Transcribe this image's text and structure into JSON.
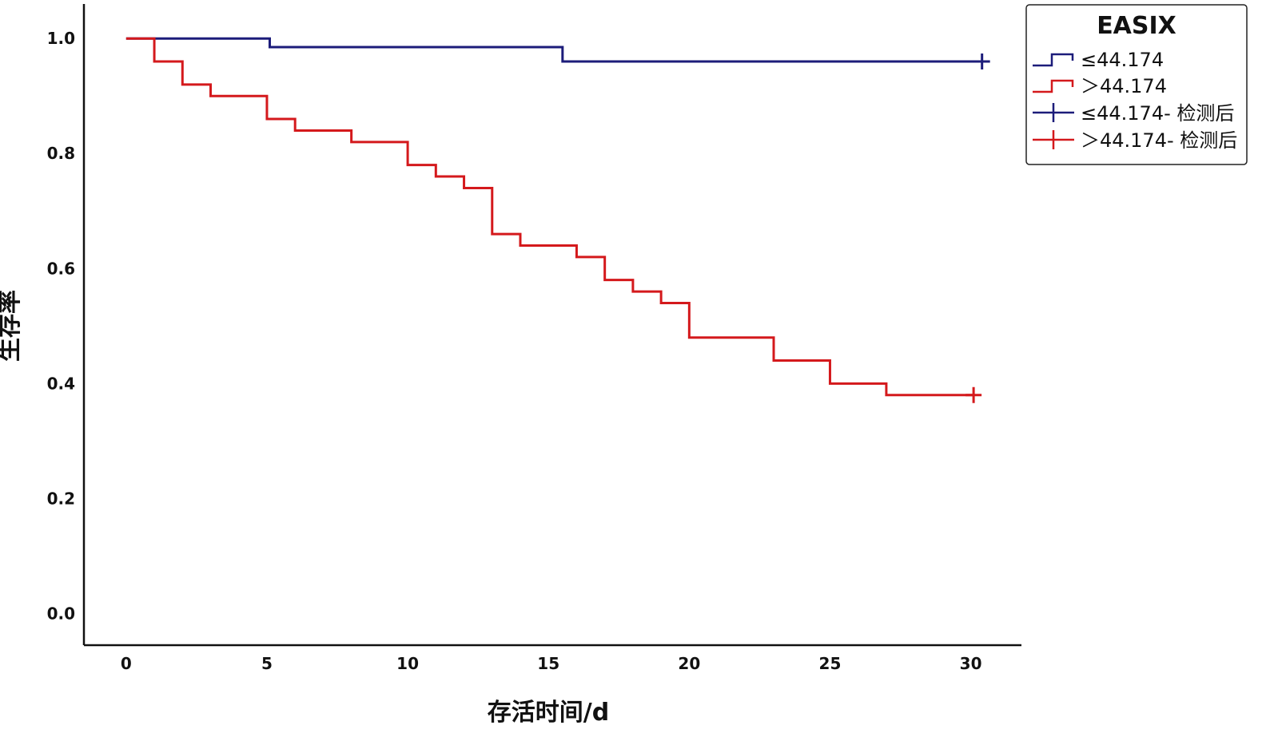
{
  "chart_data": {
    "type": "line",
    "subtype": "kaplan-meier-step",
    "title": "",
    "xlabel": "存活时间/d",
    "ylabel": "生存率",
    "xlim": [
      -1.5,
      31.8
    ],
    "ylim": [
      -0.055,
      1.06
    ],
    "xticks": [
      0,
      5,
      10,
      15,
      20,
      25,
      30
    ],
    "yticks": [
      0.0,
      0.2,
      0.4,
      0.6,
      0.8,
      1.0
    ],
    "ytick_labels": [
      "0.0",
      "0.2",
      "0.4",
      "0.6",
      "0.8",
      "1.0"
    ],
    "grid": false,
    "legend": {
      "position": "top-right",
      "title": "EASIX",
      "entries": [
        "≤44.174",
        "＞44.174",
        "≤44.174- 检测后",
        "＞44.174- 检测后"
      ]
    },
    "series": [
      {
        "name": "≤44.174",
        "color": "#1c1c7a",
        "steps": [
          [
            0,
            1.0
          ],
          [
            5.1,
            0.985
          ],
          [
            15.5,
            0.96
          ]
        ],
        "end_x": 30.4,
        "censored": [
          [
            30.4,
            0.96
          ]
        ]
      },
      {
        "name": "＞44.174",
        "color": "#d4191c",
        "steps": [
          [
            0,
            1.0
          ],
          [
            1.0,
            0.96
          ],
          [
            2.0,
            0.92
          ],
          [
            3.0,
            0.9
          ],
          [
            5.0,
            0.86
          ],
          [
            6.0,
            0.84
          ],
          [
            8.0,
            0.82
          ],
          [
            10.0,
            0.78
          ],
          [
            11.0,
            0.76
          ],
          [
            12.0,
            0.74
          ],
          [
            13.0,
            0.66
          ],
          [
            14.0,
            0.64
          ],
          [
            16.0,
            0.62
          ],
          [
            17.0,
            0.58
          ],
          [
            18.0,
            0.56
          ],
          [
            19.0,
            0.54
          ],
          [
            20.0,
            0.48
          ],
          [
            23.0,
            0.44
          ],
          [
            25.0,
            0.4
          ],
          [
            27.0,
            0.38
          ]
        ],
        "end_x": 30.1,
        "censored": [
          [
            30.1,
            0.38
          ]
        ]
      }
    ]
  }
}
